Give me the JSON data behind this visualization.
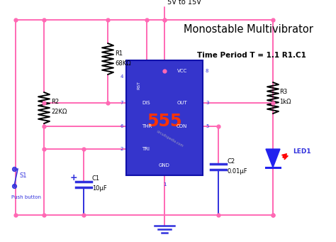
{
  "title": "Monostable Multivibrator",
  "time_period": "Time Period T = 1.1 R1.C1",
  "supply_label": "5V to 15V",
  "bg_color": "#ffffff",
  "wire_pink": "#FF69B4",
  "wire_blue": "#3030DD",
  "ic_fill": "#3535CC",
  "ic_border": "#1010AA",
  "ic_label": "555",
  "watermark": "circuitspedia.com",
  "components": {
    "R1": {
      "label": "R1",
      "value": "68KΩ"
    },
    "R2": {
      "label": "R2",
      "value": "22KΩ"
    },
    "R3": {
      "label": "R3",
      "value": "1kΩ"
    },
    "C1": {
      "label": "C1",
      "value": "10μF"
    },
    "C2": {
      "label": "C2",
      "value": "0.01μF"
    },
    "S1": {
      "label": "S1",
      "sublabel": "Push button"
    },
    "LED1": {
      "label": "LED1"
    }
  }
}
